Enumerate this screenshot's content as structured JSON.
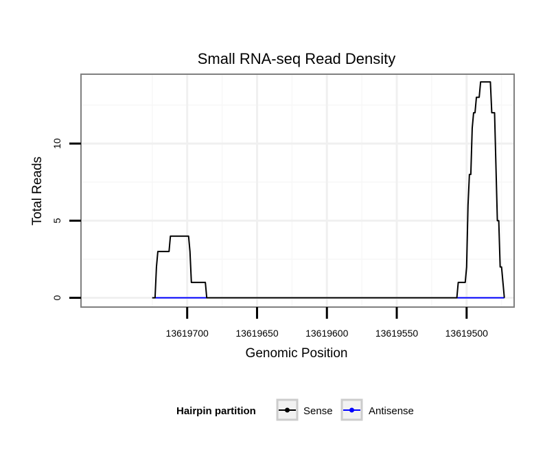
{
  "chart_data": {
    "type": "line",
    "title": "Small RNA-seq Read Density",
    "xlabel": "Genomic Position",
    "ylabel": "Total Reads",
    "x_reversed": true,
    "xlim": [
      13619776,
      13619466
    ],
    "ylim": [
      -0.6,
      14.5
    ],
    "xticks": [
      13619700,
      13619650,
      13619600,
      13619550,
      13619500
    ],
    "xtick_labels": [
      "13619700",
      "13619650",
      "13619600",
      "13619550",
      "13619500"
    ],
    "yticks": [
      0,
      5,
      10
    ],
    "ytick_labels": [
      "0",
      "5",
      "10"
    ],
    "grid": true,
    "legend": {
      "title": "Hairpin partition",
      "position": "bottom",
      "entries": [
        "Sense",
        "Antisense"
      ]
    },
    "series": [
      {
        "name": "Sense",
        "color": "#000000",
        "points": [
          [
            13619725,
            0
          ],
          [
            13619723,
            0
          ],
          [
            13619722,
            2
          ],
          [
            13619721,
            3
          ],
          [
            13619713,
            3
          ],
          [
            13619712,
            4
          ],
          [
            13619699,
            4
          ],
          [
            13619698,
            3
          ],
          [
            13619697,
            1
          ],
          [
            13619687,
            1
          ],
          [
            13619686,
            0
          ],
          [
            13619507,
            0
          ],
          [
            13619506,
            1
          ],
          [
            13619501,
            1
          ],
          [
            13619500,
            2
          ],
          [
            13619499,
            6
          ],
          [
            13619498,
            8
          ],
          [
            13619497,
            8
          ],
          [
            13619496,
            11
          ],
          [
            13619495,
            12
          ],
          [
            13619494,
            12
          ],
          [
            13619493,
            13
          ],
          [
            13619491,
            13
          ],
          [
            13619490,
            14
          ],
          [
            13619483,
            14
          ],
          [
            13619482,
            12
          ],
          [
            13619480,
            12
          ],
          [
            13619478,
            5
          ],
          [
            13619477,
            5
          ],
          [
            13619476,
            2
          ],
          [
            13619475,
            2
          ],
          [
            13619473,
            0
          ]
        ]
      },
      {
        "name": "Antisense",
        "color": "#0000ff",
        "points": [
          [
            13619725,
            0
          ],
          [
            13619473,
            0
          ]
        ]
      }
    ]
  }
}
